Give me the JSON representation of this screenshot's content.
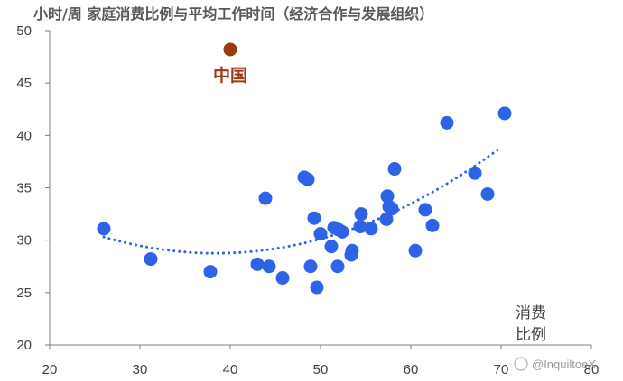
{
  "chart_data": {
    "type": "scatter",
    "title": "小时/周 家庭消费比例与平均工作时间（经济合作与发展组织）",
    "xlabel": [
      "消费",
      "比例"
    ],
    "ylabel": "",
    "xlim": [
      20,
      80
    ],
    "ylim": [
      20,
      50
    ],
    "xticks": [
      "20",
      "30",
      "40",
      "50",
      "60",
      "70",
      "80"
    ],
    "yticks": [
      "20",
      "25",
      "30",
      "35",
      "40",
      "45",
      "50"
    ],
    "grid": false,
    "legend": false,
    "series": [
      {
        "color": "#2E63E6",
        "points": [
          [
            26.0,
            31.1
          ],
          [
            31.2,
            28.2
          ],
          [
            37.8,
            27.0
          ],
          [
            43.0,
            27.7
          ],
          [
            43.9,
            34.0
          ],
          [
            44.3,
            27.5
          ],
          [
            45.8,
            26.4
          ],
          [
            48.2,
            36.0
          ],
          [
            48.6,
            35.8
          ],
          [
            48.9,
            27.5
          ],
          [
            49.3,
            32.1
          ],
          [
            49.6,
            25.5
          ],
          [
            50.0,
            30.6
          ],
          [
            51.2,
            29.4
          ],
          [
            51.5,
            31.2
          ],
          [
            51.9,
            27.5
          ],
          [
            52.0,
            31.0
          ],
          [
            52.4,
            30.8
          ],
          [
            53.4,
            28.6
          ],
          [
            53.5,
            29.0
          ],
          [
            54.4,
            31.3
          ],
          [
            54.5,
            32.5
          ],
          [
            55.6,
            31.1
          ],
          [
            57.3,
            32.0
          ],
          [
            57.4,
            34.2
          ],
          [
            57.6,
            33.2
          ],
          [
            57.9,
            33.0
          ],
          [
            58.2,
            36.8
          ],
          [
            60.5,
            29.0
          ],
          [
            61.6,
            32.9
          ],
          [
            62.4,
            31.4
          ],
          [
            64.0,
            41.2
          ],
          [
            67.1,
            36.4
          ],
          [
            68.5,
            34.4
          ],
          [
            70.4,
            42.1
          ]
        ]
      },
      {
        "name": "中国",
        "color": "#9B3A10",
        "points": [
          [
            40.0,
            48.2
          ]
        ]
      }
    ],
    "trendline": {
      "style": "dotted",
      "color": "#2E63E6",
      "fit": "quadratic",
      "x_range": [
        26,
        70
      ]
    }
  },
  "watermark": "@InquiltoeX"
}
